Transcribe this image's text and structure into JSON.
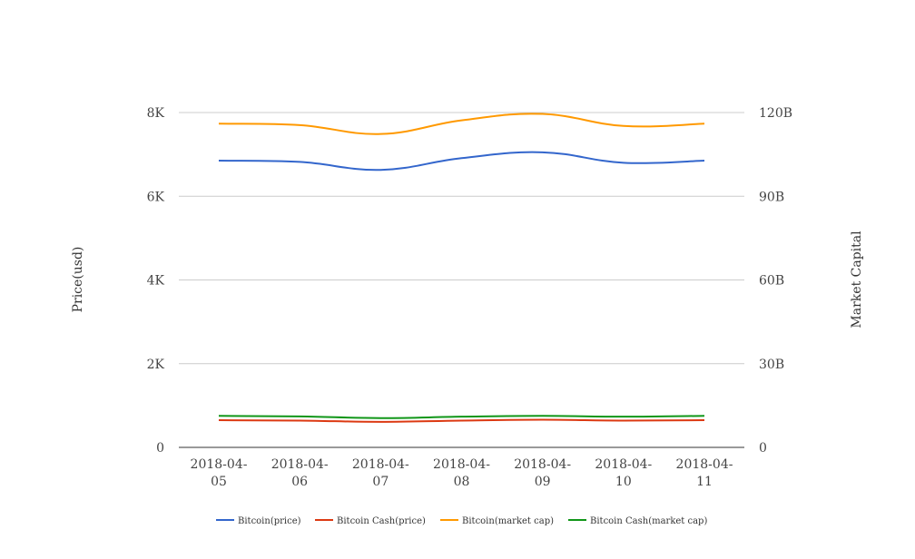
{
  "chart_data": {
    "type": "line",
    "title": "",
    "categories": [
      "2018-04-05",
      "2018-04-06",
      "2018-04-07",
      "2018-04-08",
      "2018-04-09",
      "2018-04-10",
      "2018-04-11"
    ],
    "category_labels": [
      [
        "2018-04-",
        "05"
      ],
      [
        "2018-04-",
        "06"
      ],
      [
        "2018-04-",
        "07"
      ],
      [
        "2018-04-",
        "08"
      ],
      [
        "2018-04-",
        "09"
      ],
      [
        "2018-04-",
        "10"
      ],
      [
        "2018-04-",
        "11"
      ]
    ],
    "ylabel_left": "Price(usd)",
    "ylabel_right": "Market Capital",
    "ylim_left": [
      0,
      8000
    ],
    "ylim_right": [
      0,
      120000000000
    ],
    "yticks_left": [
      {
        "value": 0,
        "label": "0"
      },
      {
        "value": 2000,
        "label": "2K"
      },
      {
        "value": 4000,
        "label": "4K"
      },
      {
        "value": 6000,
        "label": "6K"
      },
      {
        "value": 8000,
        "label": "8K"
      }
    ],
    "yticks_right": [
      {
        "value": 0,
        "label": "0"
      },
      {
        "value": 30000000000,
        "label": "30B"
      },
      {
        "value": 60000000000,
        "label": "60B"
      },
      {
        "value": 90000000000,
        "label": "90B"
      },
      {
        "value": 120000000000,
        "label": "120B"
      }
    ],
    "grid": true,
    "legend_position": "bottom",
    "series": [
      {
        "name": "Bitcoin(price)",
        "axis": "left",
        "color": "#3366cc",
        "values": [
          6850,
          6820,
          6630,
          6910,
          7050,
          6800,
          6850
        ]
      },
      {
        "name": "Bitcoin Cash(price)",
        "axis": "left",
        "color": "#dc3912",
        "values": [
          650,
          640,
          610,
          640,
          660,
          640,
          650
        ]
      },
      {
        "name": "Bitcoin(market cap)",
        "axis": "right",
        "color": "#ff9900",
        "values": [
          116000000000,
          115500000000,
          112300000000,
          117200000000,
          119500000000,
          115200000000,
          116000000000
        ]
      },
      {
        "name": "Bitcoin Cash(market cap)",
        "axis": "right",
        "color": "#109618",
        "values": [
          11300000000,
          11100000000,
          10500000000,
          11000000000,
          11300000000,
          11000000000,
          11300000000
        ]
      }
    ]
  }
}
